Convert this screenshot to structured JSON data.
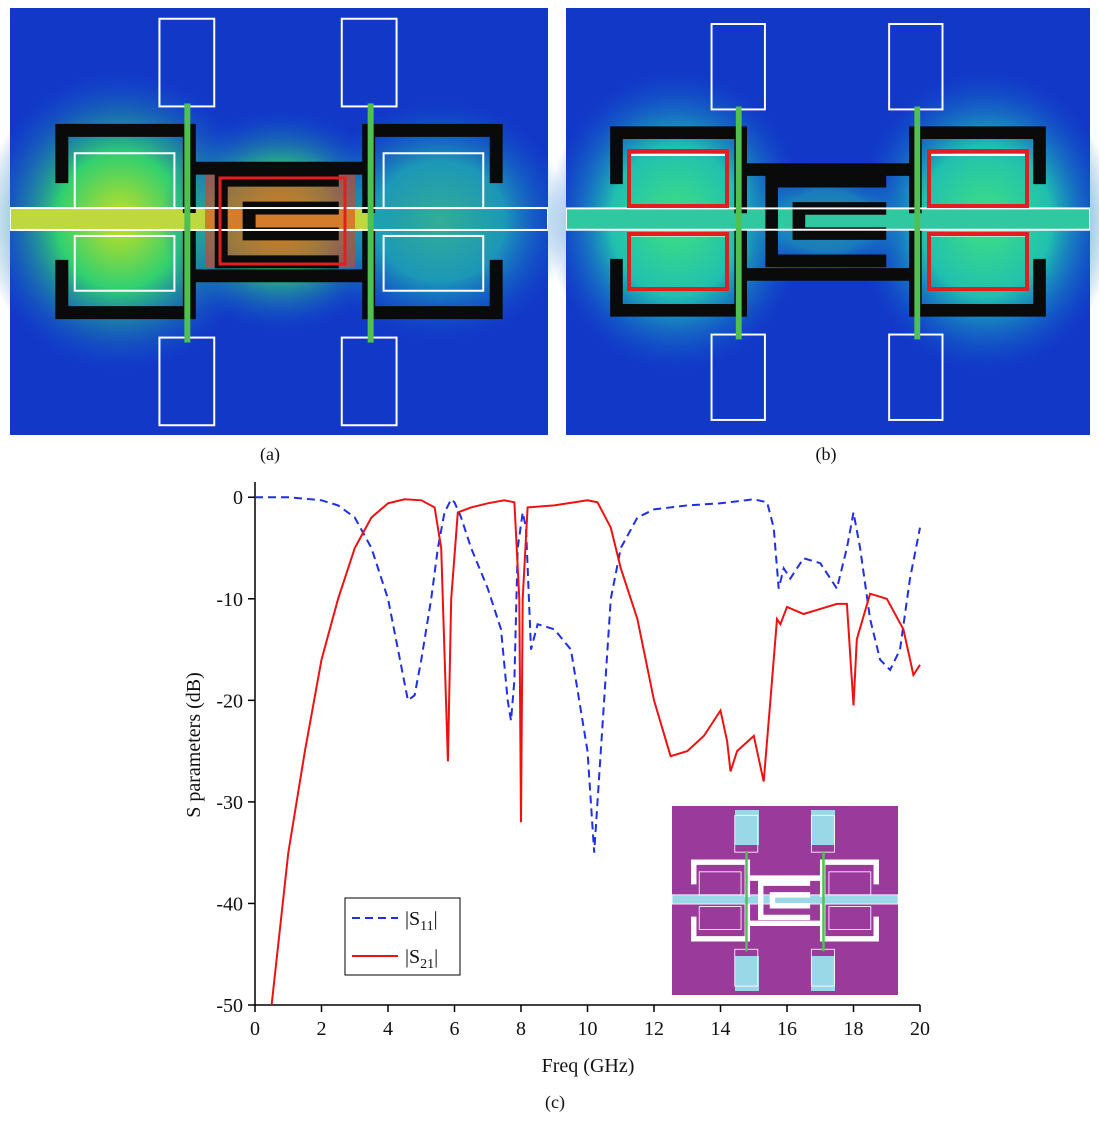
{
  "panels": {
    "a": {
      "caption": "(a)"
    },
    "b": {
      "caption": "(b)"
    }
  },
  "chart_data": {
    "type": "line",
    "caption": "(c)",
    "x_label": "Freq (GHz)",
    "y_label": "S parameters (dB)",
    "xlim": [
      0,
      20
    ],
    "ylim": [
      -50,
      1.5
    ],
    "xticks": [
      0,
      2,
      4,
      6,
      8,
      10,
      12,
      14,
      16,
      18,
      20
    ],
    "yticks": [
      0,
      -10,
      -20,
      -30,
      -40,
      -50
    ],
    "legend": "lower left",
    "series": [
      {
        "name": "|S11|",
        "color": "#1f2fe6",
        "line_style": "dashed",
        "x": [
          0,
          1,
          2,
          2.5,
          3,
          3.5,
          4,
          4.3,
          4.6,
          4.8,
          5,
          5.3,
          5.5,
          5.7,
          5.9,
          6,
          6.2,
          6.5,
          7,
          7.4,
          7.6,
          7.7,
          7.8,
          7.9,
          8.05,
          8.15,
          8.3,
          8.5,
          9,
          9.5,
          10,
          10.2,
          10.4,
          10.7,
          11,
          11.5,
          12,
          13,
          14,
          15,
          15.4,
          15.6,
          15.75,
          15.9,
          16.1,
          16.5,
          17,
          17.5,
          17.8,
          18,
          18.2,
          18.5,
          18.8,
          19.1,
          19.4,
          19.7,
          20
        ],
        "values": [
          0,
          0,
          -0.3,
          -0.8,
          -2,
          -5,
          -10,
          -15,
          -20,
          -19.5,
          -16,
          -10,
          -5,
          -1.5,
          -0.2,
          -0.5,
          -2,
          -5,
          -9,
          -13,
          -20,
          -22,
          -18,
          -5,
          -1.5,
          -3,
          -15,
          -12.5,
          -13,
          -15,
          -25,
          -35,
          -25,
          -10,
          -5,
          -2,
          -1.2,
          -0.8,
          -0.6,
          -0.2,
          -0.5,
          -3,
          -9,
          -7,
          -8,
          -6,
          -6.5,
          -9,
          -5,
          -1.5,
          -5,
          -12,
          -16,
          -17,
          -15,
          -8,
          -3
        ]
      },
      {
        "name": "|S21|",
        "color": "#ee1111",
        "line_style": "solid",
        "x": [
          0.5,
          1,
          1.5,
          2,
          2.5,
          3,
          3.5,
          4,
          4.5,
          5,
          5.4,
          5.6,
          5.8,
          5.9,
          6.1,
          6.5,
          7,
          7.5,
          7.8,
          7.95,
          8,
          8.05,
          8.2,
          9,
          10,
          10.3,
          10.7,
          11,
          11.5,
          12,
          12.5,
          13,
          13.5,
          14,
          14.2,
          14.3,
          14.5,
          15,
          15.3,
          15.5,
          15.7,
          15.8,
          16,
          16.5,
          17,
          17.5,
          17.8,
          18,
          18.1,
          18.5,
          19,
          19.5,
          19.8,
          20
        ],
        "values": [
          -50,
          -35,
          -25,
          -16,
          -10,
          -5,
          -2,
          -0.6,
          -0.2,
          -0.3,
          -1,
          -5,
          -26,
          -10,
          -1.5,
          -1,
          -0.6,
          -0.3,
          -0.5,
          -10,
          -32,
          -10,
          -1,
          -0.8,
          -0.3,
          -0.5,
          -3,
          -7,
          -12,
          -20,
          -25.5,
          -25,
          -23.5,
          -21,
          -24,
          -27,
          -25,
          -23.5,
          -28,
          -20,
          -12,
          -12.5,
          -10.8,
          -11.5,
          -11,
          -10.5,
          -10.5,
          -20.5,
          -14,
          -9.5,
          -10,
          -13,
          -17.5,
          -16.5
        ]
      }
    ]
  }
}
